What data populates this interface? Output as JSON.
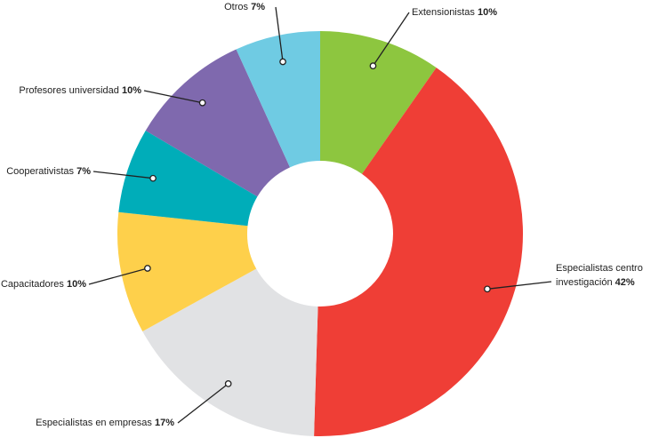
{
  "chart_data": {
    "type": "donut",
    "categories": [
      "Extensionistas",
      "Especialistas centro investigación",
      "Especialistas en empresas",
      "Capacitadores",
      "Cooperativistas",
      "Profesores universidad",
      "Otros"
    ],
    "values": [
      10,
      42,
      17,
      10,
      7,
      10,
      7
    ],
    "value_labels": [
      "10%",
      "42%",
      "17%",
      "10%",
      "7%",
      "10%",
      "7%"
    ],
    "colors": [
      "#8dc63f",
      "#ef3e36",
      "#e1e2e4",
      "#fed04b",
      "#00adb9",
      "#7f69ae",
      "#6fcbe3"
    ]
  }
}
